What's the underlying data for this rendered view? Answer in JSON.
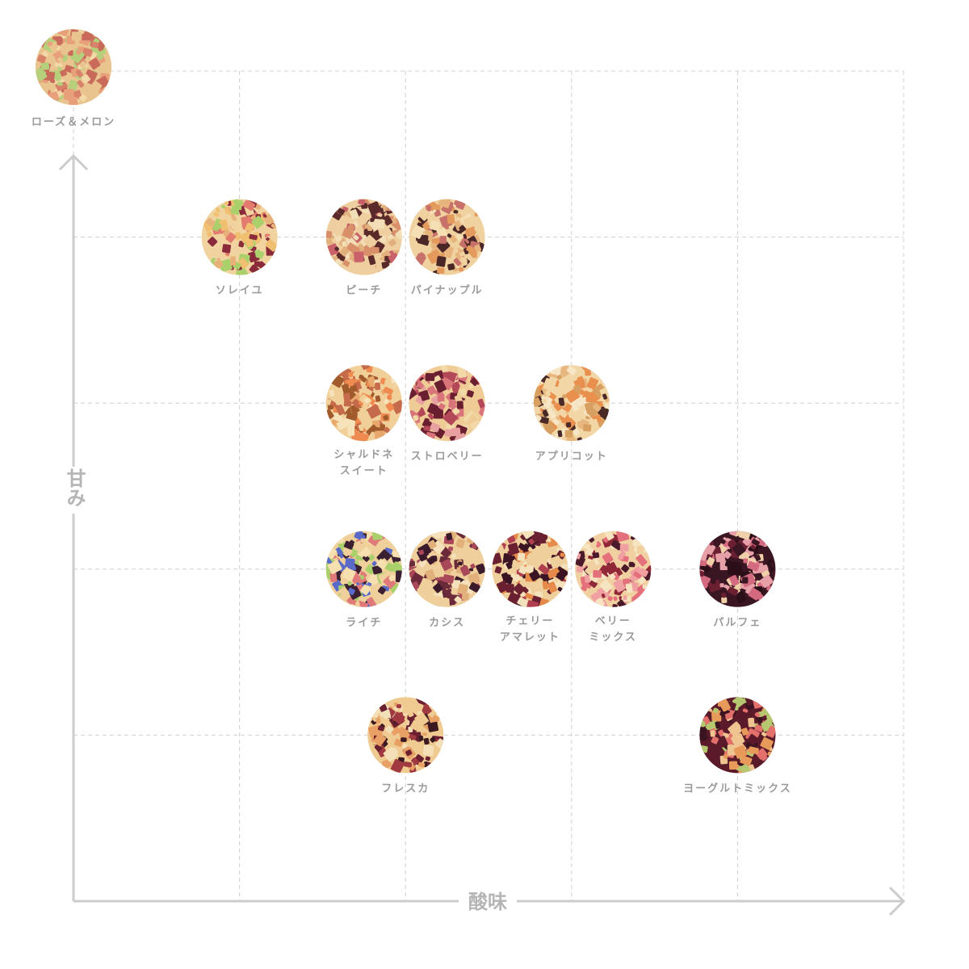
{
  "chart_data": {
    "type": "scatter",
    "title": "",
    "xlabel": "酸味",
    "ylabel": "甘み",
    "xlim": [
      0,
      5
    ],
    "ylim": [
      0,
      5
    ],
    "grid": true,
    "legend": "none",
    "colors": {
      "grid": "#d0d0d0",
      "axis": "#cccccc",
      "label": "#9a9a9a"
    },
    "points": [
      {
        "label": [
          "ローズ＆メロン"
        ],
        "x": 0,
        "y": 5,
        "palette": [
          "#e9c48f",
          "#f3d9a8",
          "#d9826a",
          "#b5cf7a",
          "#e8a07a",
          "#c96a5a"
        ]
      },
      {
        "label": [
          "ソレイユ"
        ],
        "x": 1,
        "y": 4,
        "palette": [
          "#f1d3a0",
          "#e7b27a",
          "#e37b6e",
          "#8a2a3a",
          "#a9d06a",
          "#f0c070"
        ]
      },
      {
        "label": [
          "ピーチ"
        ],
        "x": 1.75,
        "y": 4,
        "palette": [
          "#efcf9f",
          "#e2b07d",
          "#c9606a",
          "#5a2a2a",
          "#f2dfb8",
          "#d88f6a"
        ]
      },
      {
        "label": [
          "パイナップル"
        ],
        "x": 2.25,
        "y": 4,
        "palette": [
          "#f0d2a0",
          "#e6b47c",
          "#c8706a",
          "#4a2626",
          "#f5e0b5",
          "#e39a5c"
        ]
      },
      {
        "label": [
          "シャルドネ",
          "スイート"
        ],
        "x": 1.75,
        "y": 3,
        "palette": [
          "#f0cf98",
          "#e9a96c",
          "#a05a2c",
          "#ef8a50",
          "#f6e2bb",
          "#c56a4a"
        ]
      },
      {
        "label": [
          "ストロベリー"
        ],
        "x": 2.25,
        "y": 3,
        "palette": [
          "#efcb95",
          "#d9747a",
          "#6a1f30",
          "#e9a0a0",
          "#f2d9a8",
          "#b34858"
        ]
      },
      {
        "label": [
          "アプリコット"
        ],
        "x": 3,
        "y": 3,
        "palette": [
          "#f2d6a6",
          "#e8b780",
          "#e9904e",
          "#4a2a26",
          "#f6e6c5",
          "#d8a060"
        ]
      },
      {
        "label": [
          "ライチ"
        ],
        "x": 1.75,
        "y": 2,
        "palette": [
          "#f0d09a",
          "#a9d06a",
          "#5a6ac8",
          "#e07a7a",
          "#3a2030",
          "#f6e0b0"
        ]
      },
      {
        "label": [
          "カシス"
        ],
        "x": 2.25,
        "y": 2,
        "palette": [
          "#efcf9c",
          "#3a1a2a",
          "#6a2a3a",
          "#e2b07a",
          "#f5e1bb",
          "#a94858"
        ]
      },
      {
        "label": [
          "チェリー",
          "アマレット"
        ],
        "x": 2.75,
        "y": 2,
        "palette": [
          "#efcf9c",
          "#3a1422",
          "#6a2030",
          "#e58a4a",
          "#f5e1bb",
          "#b04050"
        ]
      },
      {
        "label": [
          "ベリー",
          "ミックス"
        ],
        "x": 3.25,
        "y": 2,
        "palette": [
          "#f0d0a0",
          "#e3707a",
          "#4a1a2a",
          "#f0a0a0",
          "#f6e3c0",
          "#902838"
        ]
      },
      {
        "label": [
          "パルフェ"
        ],
        "x": 4,
        "y": 2,
        "palette": [
          "#3a1522",
          "#6a2030",
          "#d46a80",
          "#e8a0a8",
          "#f0d0a8",
          "#2a0e18"
        ]
      },
      {
        "label": [
          "フレスカ"
        ],
        "x": 2,
        "y": 1,
        "palette": [
          "#efcb92",
          "#e9a064",
          "#6a2030",
          "#f3e0b8",
          "#a03a40",
          "#3a1a20"
        ]
      },
      {
        "label": [
          "ヨーグルトミックス"
        ],
        "x": 4,
        "y": 1,
        "palette": [
          "#5a1a2a",
          "#e3706a",
          "#b5c870",
          "#efc490",
          "#3a1420",
          "#e89a5a"
        ]
      }
    ]
  }
}
